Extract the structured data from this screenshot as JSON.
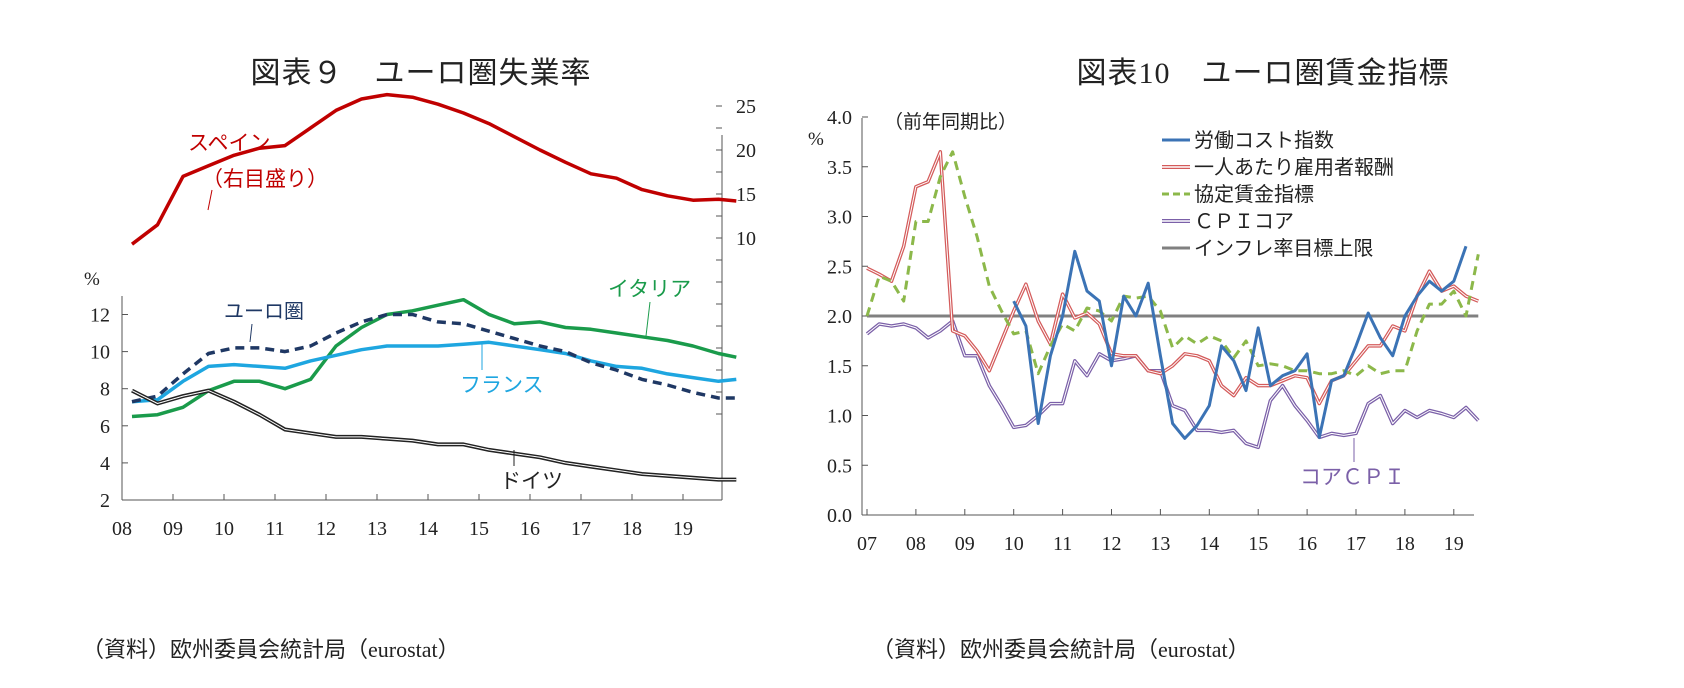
{
  "left": {
    "title": "図表９　ユーロ圏失業率",
    "source": "（資料）欧州委員会統計局（eurostat）",
    "chart_data": {
      "type": "line",
      "x": [
        2008.0,
        2008.5,
        2009.0,
        2009.5,
        2010.0,
        2010.5,
        2011.0,
        2011.5,
        2012.0,
        2012.5,
        2013.0,
        2013.5,
        2014.0,
        2014.5,
        2015.0,
        2015.5,
        2016.0,
        2016.5,
        2017.0,
        2017.5,
        2018.0,
        2018.5,
        2019.0,
        2019.5,
        2019.85
      ],
      "xticks": [
        "08",
        "09",
        "10",
        "11",
        "12",
        "13",
        "14",
        "15",
        "16",
        "17",
        "18",
        "19"
      ],
      "y_left": {
        "unit": "%",
        "ticks": [
          "2",
          "4",
          "6",
          "8",
          "10",
          "12"
        ],
        "range": [
          2,
          13
        ]
      },
      "y_right": {
        "unit": "%",
        "ticks": [
          "10",
          "15",
          "20",
          "25"
        ],
        "range": [
          -12.5,
          28
        ]
      },
      "series": [
        {
          "name": "スペイン",
          "axis": "right",
          "color": "#c00000",
          "style": "solid",
          "values": [
            9.3,
            11.5,
            17.0,
            18.2,
            19.4,
            20.2,
            20.5,
            22.5,
            24.5,
            25.8,
            26.3,
            26.0,
            25.2,
            24.2,
            23.0,
            21.5,
            20.0,
            18.6,
            17.3,
            16.8,
            15.5,
            14.8,
            14.3,
            14.4,
            14.2
          ]
        },
        {
          "name": "イタリア",
          "axis": "left",
          "color": "#1a9b4b",
          "style": "solid",
          "values": [
            6.5,
            6.6,
            7.0,
            7.9,
            8.4,
            8.4,
            8.0,
            8.5,
            10.3,
            11.3,
            12.0,
            12.2,
            12.5,
            12.8,
            12.0,
            11.5,
            11.6,
            11.3,
            11.2,
            11.0,
            10.8,
            10.6,
            10.3,
            9.9,
            9.7
          ]
        },
        {
          "name": "フランス",
          "axis": "left",
          "color": "#1ea6e0",
          "style": "solid",
          "values": [
            7.3,
            7.4,
            8.4,
            9.2,
            9.3,
            9.2,
            9.1,
            9.5,
            9.8,
            10.1,
            10.3,
            10.3,
            10.3,
            10.4,
            10.5,
            10.3,
            10.1,
            9.9,
            9.5,
            9.2,
            9.1,
            8.8,
            8.6,
            8.4,
            8.5
          ]
        },
        {
          "name": "ユーロ圏",
          "axis": "left",
          "color": "#1f3864",
          "style": "dashed",
          "values": [
            7.3,
            7.6,
            8.8,
            9.9,
            10.2,
            10.2,
            10.0,
            10.3,
            11.0,
            11.6,
            12.0,
            12.0,
            11.6,
            11.5,
            11.1,
            10.7,
            10.3,
            10.0,
            9.4,
            9.0,
            8.5,
            8.2,
            7.8,
            7.5,
            7.5
          ]
        },
        {
          "name": "ドイツ",
          "axis": "left",
          "color": "#222222",
          "style": "double",
          "values": [
            7.9,
            7.2,
            7.6,
            7.9,
            7.3,
            6.6,
            5.8,
            5.6,
            5.4,
            5.4,
            5.3,
            5.2,
            5.0,
            5.0,
            4.7,
            4.5,
            4.3,
            4.0,
            3.8,
            3.6,
            3.4,
            3.3,
            3.2,
            3.1,
            3.1
          ]
        }
      ],
      "annotations": {
        "spain": "スペイン",
        "spain_note": "（右目盛り）",
        "euro": "ユーロ圏",
        "italy": "イタリア",
        "france": "フランス",
        "germany": "ドイツ"
      }
    }
  },
  "right": {
    "title": "図表10　ユーロ圏賃金指標",
    "source": "（資料）欧州委員会統計局（eurostat）",
    "chart_data": {
      "type": "line",
      "subtitle": "（前年同期比）",
      "x": [
        2007.0,
        2007.25,
        2007.5,
        2007.75,
        2008.0,
        2008.25,
        2008.5,
        2008.75,
        2009.0,
        2009.25,
        2009.5,
        2009.75,
        2010.0,
        2010.25,
        2010.5,
        2010.75,
        2011.0,
        2011.25,
        2011.5,
        2011.75,
        2012.0,
        2012.25,
        2012.5,
        2012.75,
        2013.0,
        2013.25,
        2013.5,
        2013.75,
        2014.0,
        2014.25,
        2014.5,
        2014.75,
        2015.0,
        2015.25,
        2015.5,
        2015.75,
        2016.0,
        2016.25,
        2016.5,
        2016.75,
        2017.0,
        2017.25,
        2017.5,
        2017.75,
        2018.0,
        2018.25,
        2018.5,
        2018.75,
        2019.0,
        2019.25,
        2019.5
      ],
      "xticks": [
        "07",
        "08",
        "09",
        "10",
        "11",
        "12",
        "13",
        "14",
        "15",
        "16",
        "17",
        "18",
        "19"
      ],
      "y": {
        "ticks": [
          "0.0",
          "0.5",
          "1.0",
          "1.5",
          "2.0",
          "2.5",
          "3.0",
          "3.5",
          "4.0"
        ],
        "range": [
          0,
          4
        ]
      },
      "series": [
        {
          "name": "労働コスト指数",
          "color": "#3b73b5",
          "style": "solid",
          "values": [
            null,
            null,
            null,
            null,
            null,
            null,
            null,
            null,
            null,
            null,
            null,
            null,
            2.15,
            1.9,
            0.92,
            1.6,
            2.0,
            2.65,
            2.25,
            2.15,
            1.5,
            2.2,
            2.0,
            2.33,
            1.6,
            0.92,
            0.77,
            0.9,
            1.1,
            1.7,
            1.55,
            1.25,
            1.88,
            1.3,
            1.4,
            1.45,
            1.62,
            0.78,
            1.35,
            1.4,
            1.7,
            2.03,
            1.78,
            1.6,
            2.0,
            2.2,
            2.35,
            2.25,
            2.35,
            2.7,
            null
          ]
        },
        {
          "name": "一人あたり雇用者報酬",
          "color": "#d45b5b",
          "style": "double",
          "values": [
            2.48,
            2.42,
            2.35,
            2.7,
            3.3,
            3.35,
            3.65,
            1.85,
            1.8,
            1.65,
            1.45,
            1.75,
            2.05,
            2.32,
            1.95,
            1.72,
            2.22,
            1.98,
            2.03,
            1.92,
            1.62,
            1.6,
            1.6,
            1.45,
            1.42,
            1.5,
            1.62,
            1.6,
            1.55,
            1.3,
            1.2,
            1.38,
            1.3,
            1.3,
            1.35,
            1.4,
            1.38,
            1.12,
            1.35,
            1.4,
            1.55,
            1.7,
            1.7,
            1.9,
            1.85,
            2.2,
            2.45,
            2.25,
            2.3,
            2.2,
            2.15
          ]
        },
        {
          "name": "協定賃金指標",
          "color": "#8cb84a",
          "style": "dashed",
          "values": [
            2.0,
            2.4,
            2.35,
            2.15,
            2.95,
            2.95,
            3.4,
            3.65,
            3.2,
            2.8,
            2.3,
            2.05,
            1.82,
            1.85,
            1.42,
            1.7,
            1.92,
            1.85,
            2.08,
            2.05,
            1.95,
            2.2,
            2.18,
            2.2,
            2.05,
            1.68,
            1.8,
            1.72,
            1.8,
            1.75,
            1.58,
            1.75,
            1.5,
            1.52,
            1.5,
            1.45,
            1.45,
            1.42,
            1.42,
            1.45,
            1.4,
            1.5,
            1.42,
            1.45,
            1.45,
            1.85,
            2.12,
            2.12,
            2.25,
            2.0,
            2.62
          ]
        },
        {
          "name": "ＣＰＩコア",
          "color": "#7b60a8",
          "style": "double",
          "values": [
            1.82,
            1.92,
            1.9,
            1.92,
            1.88,
            1.78,
            1.85,
            1.95,
            1.6,
            1.6,
            1.3,
            1.1,
            0.88,
            0.9,
            1.0,
            1.12,
            1.12,
            1.55,
            1.4,
            1.62,
            1.55,
            1.57,
            1.6,
            1.45,
            1.45,
            1.1,
            1.05,
            0.85,
            0.85,
            0.83,
            0.85,
            0.72,
            0.68,
            1.15,
            1.3,
            1.1,
            0.95,
            0.78,
            0.82,
            0.8,
            0.82,
            1.12,
            1.2,
            0.92,
            1.05,
            0.98,
            1.05,
            1.02,
            0.98,
            1.08,
            0.95
          ]
        },
        {
          "name": "インフレ率目標上限",
          "color": "#808080",
          "style": "solid",
          "values": [
            2.0,
            2.0,
            2.0,
            2.0,
            2.0,
            2.0,
            2.0,
            2.0,
            2.0,
            2.0,
            2.0,
            2.0,
            2.0,
            2.0,
            2.0,
            2.0,
            2.0,
            2.0,
            2.0,
            2.0,
            2.0,
            2.0,
            2.0,
            2.0,
            2.0,
            2.0,
            2.0,
            2.0,
            2.0,
            2.0,
            2.0,
            2.0,
            2.0,
            2.0,
            2.0,
            2.0,
            2.0,
            2.0,
            2.0,
            2.0,
            2.0,
            2.0,
            2.0,
            2.0,
            2.0,
            2.0,
            2.0,
            2.0,
            2.0,
            2.0,
            2.0
          ]
        }
      ],
      "legend_position": "top-right",
      "annotations": {
        "core_cpi": "コアＣＰＩ"
      }
    }
  }
}
